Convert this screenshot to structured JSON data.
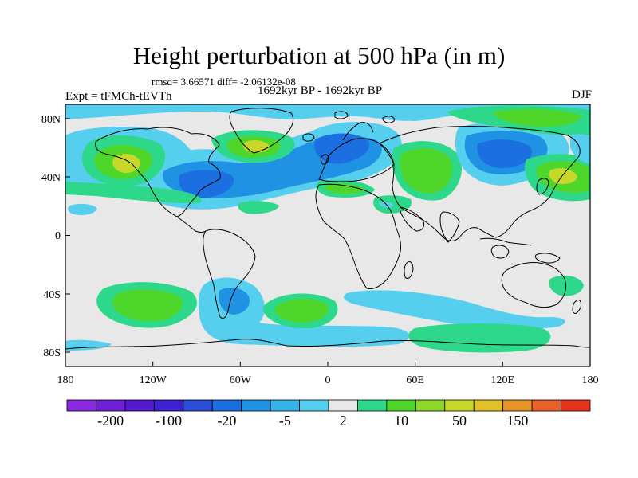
{
  "title": "Height perturbation at 500 hPa (in m)",
  "stats_text": "rmsd= 3.66571 diff= -2.06132e-08",
  "expt_label": "Expt = tFMCh-tEVTh",
  "period_label": "1692kyr BP - 1692kyr BP",
  "season_label": "DJF",
  "lon_ticks": [
    "180",
    "120W",
    "60W",
    "0",
    "60E",
    "120E",
    "180"
  ],
  "lat_ticks": [
    "80N",
    "40N",
    "0",
    "40S",
    "80S"
  ],
  "colorbar": {
    "colors": [
      "#8a2be2",
      "#6f1fd6",
      "#5418d0",
      "#3b21cf",
      "#2a4dd8",
      "#1c6fe0",
      "#1f92e4",
      "#35b4ea",
      "#56cfee",
      "#e8e8e8",
      "#2ed88a",
      "#4fd62a",
      "#8fd62a",
      "#c8d82a",
      "#e2c02a",
      "#e8962a",
      "#e8602a",
      "#e4331f"
    ],
    "labels": [
      "-200",
      "-100",
      "-20",
      "-5",
      "2",
      "10",
      "50",
      "150"
    ]
  },
  "colors": {
    "background": "#e8e8e8",
    "neg_light": "#56cfee",
    "neg_mid": "#1f92e4",
    "neg_dark": "#1c6fe0",
    "pos_light": "#2ed88a",
    "pos_mid": "#4fd62a",
    "pos_strong": "#c8d82a"
  }
}
